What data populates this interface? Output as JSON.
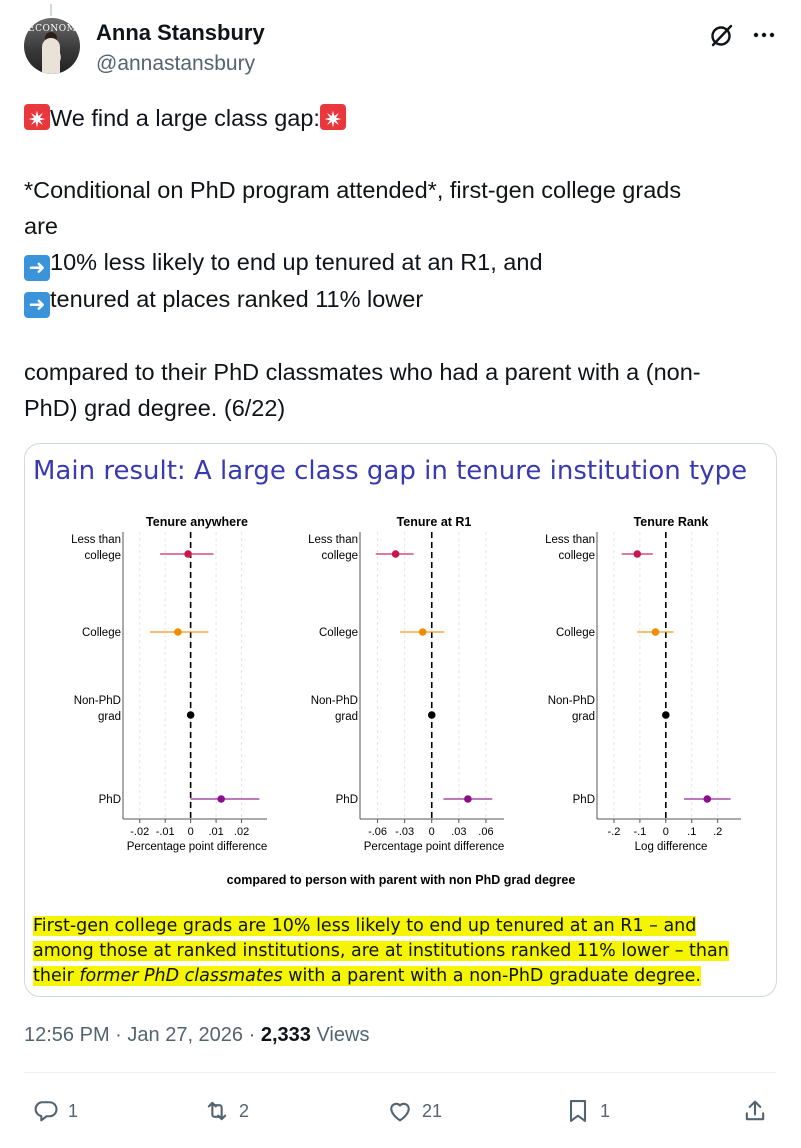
{
  "author": {
    "name": "Anna Stansbury",
    "handle": "@annastansbury",
    "avatar_text": "ECONOMIC"
  },
  "post": {
    "line1_text": "We find a large class gap:",
    "line2": "*Conditional on PhD program attended*, first-gen college grads",
    "line3": "are",
    "line4": "10% less likely to end up tenured at an R1, and",
    "line5": "tenured at places ranked 11% lower",
    "line6": "compared to their PhD classmates who had a parent with a (non-",
    "line7": "PhD) grad degree. (6/22)"
  },
  "media": {
    "title": "Main result:  A large class gap in tenure institution type",
    "footer_label": "compared to person with parent with non PhD grad degree",
    "caption_parts": [
      "First-gen college grads are 10% less likely to end up tenured at an R1 – and among those at ranked institutions, are at institutions ranked 11% lower – than their ",
      "former PhD classmates",
      " with a parent with a non-PhD graduate degree."
    ]
  },
  "chart_data": [
    {
      "type": "scatter",
      "title": "Tenure anywhere",
      "xlabel": "Percentage point difference",
      "categories": [
        "Less than college",
        "College",
        "Non-PhD grad",
        "PhD"
      ],
      "points": [
        {
          "category": "Less than college",
          "estimate": -0.001,
          "ci": [
            -0.012,
            0.009
          ],
          "color": "#c8174a"
        },
        {
          "category": "College",
          "estimate": -0.005,
          "ci": [
            -0.016,
            0.007
          ],
          "color": "#f08c00"
        },
        {
          "category": "Non-PhD grad",
          "estimate": 0,
          "ci": [
            0,
            0
          ],
          "color": "#000000"
        },
        {
          "category": "PhD",
          "estimate": 0.012,
          "ci": [
            0,
            0.027
          ],
          "color": "#8b0f8b"
        }
      ],
      "xlim": [
        -0.025,
        0.03
      ],
      "ticks": [
        -0.02,
        -0.01,
        0,
        0.01,
        0.02
      ],
      "tick_labels": [
        "-.02",
        "-.01",
        "0",
        ".01",
        ".02"
      ]
    },
    {
      "type": "scatter",
      "title": "Tenure at R1",
      "xlabel": "Percentage point difference",
      "categories": [
        "Less than college",
        "College",
        "Non-PhD grad",
        "PhD"
      ],
      "points": [
        {
          "category": "Less than college",
          "estimate": -0.04,
          "ci": [
            -0.062,
            -0.02
          ],
          "color": "#c8174a"
        },
        {
          "category": "College",
          "estimate": -0.01,
          "ci": [
            -0.035,
            0.014
          ],
          "color": "#f08c00"
        },
        {
          "category": "Non-PhD grad",
          "estimate": 0,
          "ci": [
            0,
            0
          ],
          "color": "#000000"
        },
        {
          "category": "PhD",
          "estimate": 0.04,
          "ci": [
            0.013,
            0.067
          ],
          "color": "#8b0f8b"
        }
      ],
      "xlim": [
        -0.075,
        0.08
      ],
      "ticks": [
        -0.06,
        -0.03,
        0,
        0.03,
        0.06
      ],
      "tick_labels": [
        "-.06",
        "-.03",
        "0",
        ".03",
        ".06"
      ]
    },
    {
      "type": "scatter",
      "title": "Tenure Rank",
      "xlabel": "Log difference",
      "categories": [
        "Less than college",
        "College",
        "Non-PhD grad",
        "PhD"
      ],
      "points": [
        {
          "category": "Less than college",
          "estimate": -0.11,
          "ci": [
            -0.17,
            -0.05
          ],
          "color": "#c8174a"
        },
        {
          "category": "College",
          "estimate": -0.04,
          "ci": [
            -0.11,
            0.03
          ],
          "color": "#f08c00"
        },
        {
          "category": "Non-PhD grad",
          "estimate": 0,
          "ci": [
            0,
            0
          ],
          "color": "#000000"
        },
        {
          "category": "PhD",
          "estimate": 0.16,
          "ci": [
            0.07,
            0.25
          ],
          "color": "#8b0f8b"
        }
      ],
      "xlim": [
        -0.25,
        0.29
      ],
      "ticks": [
        -0.2,
        -0.1,
        0,
        0.1,
        0.2
      ],
      "tick_labels": [
        "-.2",
        "-.1",
        "0",
        ".1",
        ".2"
      ]
    }
  ],
  "meta": {
    "time": "12:56 PM",
    "date": "Jan 27, 2026",
    "views_count": "2,333",
    "views_label": "Views"
  },
  "actions": {
    "replies": "1",
    "reposts": "2",
    "likes": "21",
    "bookmarks": "1"
  }
}
